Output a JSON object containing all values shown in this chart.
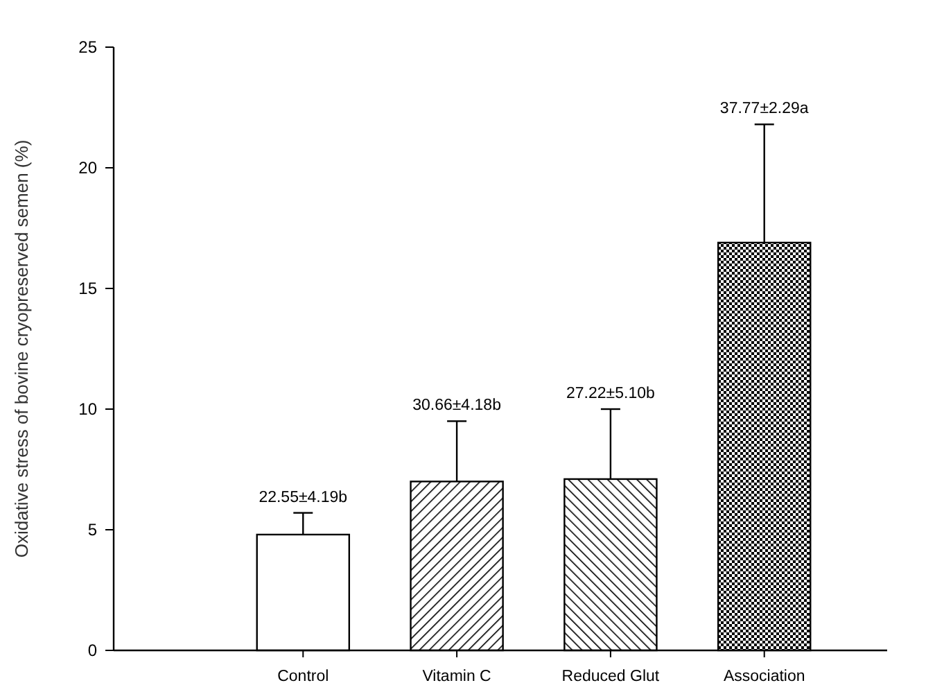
{
  "chart_data": {
    "type": "bar",
    "ylabel": "Oxidative stress of bovine cryopreserved semen (%)",
    "categories": [
      "Control",
      "Vitamin C",
      "Reduced Glut",
      "Association"
    ],
    "values": [
      4.8,
      7.0,
      7.1,
      16.9
    ],
    "errors": [
      0.9,
      2.5,
      2.9,
      4.9
    ],
    "annotations": [
      {
        "text": "22.55±4.19b",
        "x": "Control",
        "y": 5.7
      },
      {
        "text": "30.66±4.18b",
        "x": "Vitamin C",
        "y": 9.5
      },
      {
        "text": "27.22±5.10b",
        "x": "Reduced Glut",
        "y": 10.0
      },
      {
        "text": "37.77±2.29a",
        "x": "Association",
        "y": 21.8
      }
    ],
    "colors": [
      "#ffffff",
      "#000000",
      "#000000",
      "#000000"
    ],
    "ylim": [
      0,
      25
    ],
    "yticks": [
      0,
      5,
      10,
      15,
      20,
      25
    ],
    "grid": false
  }
}
